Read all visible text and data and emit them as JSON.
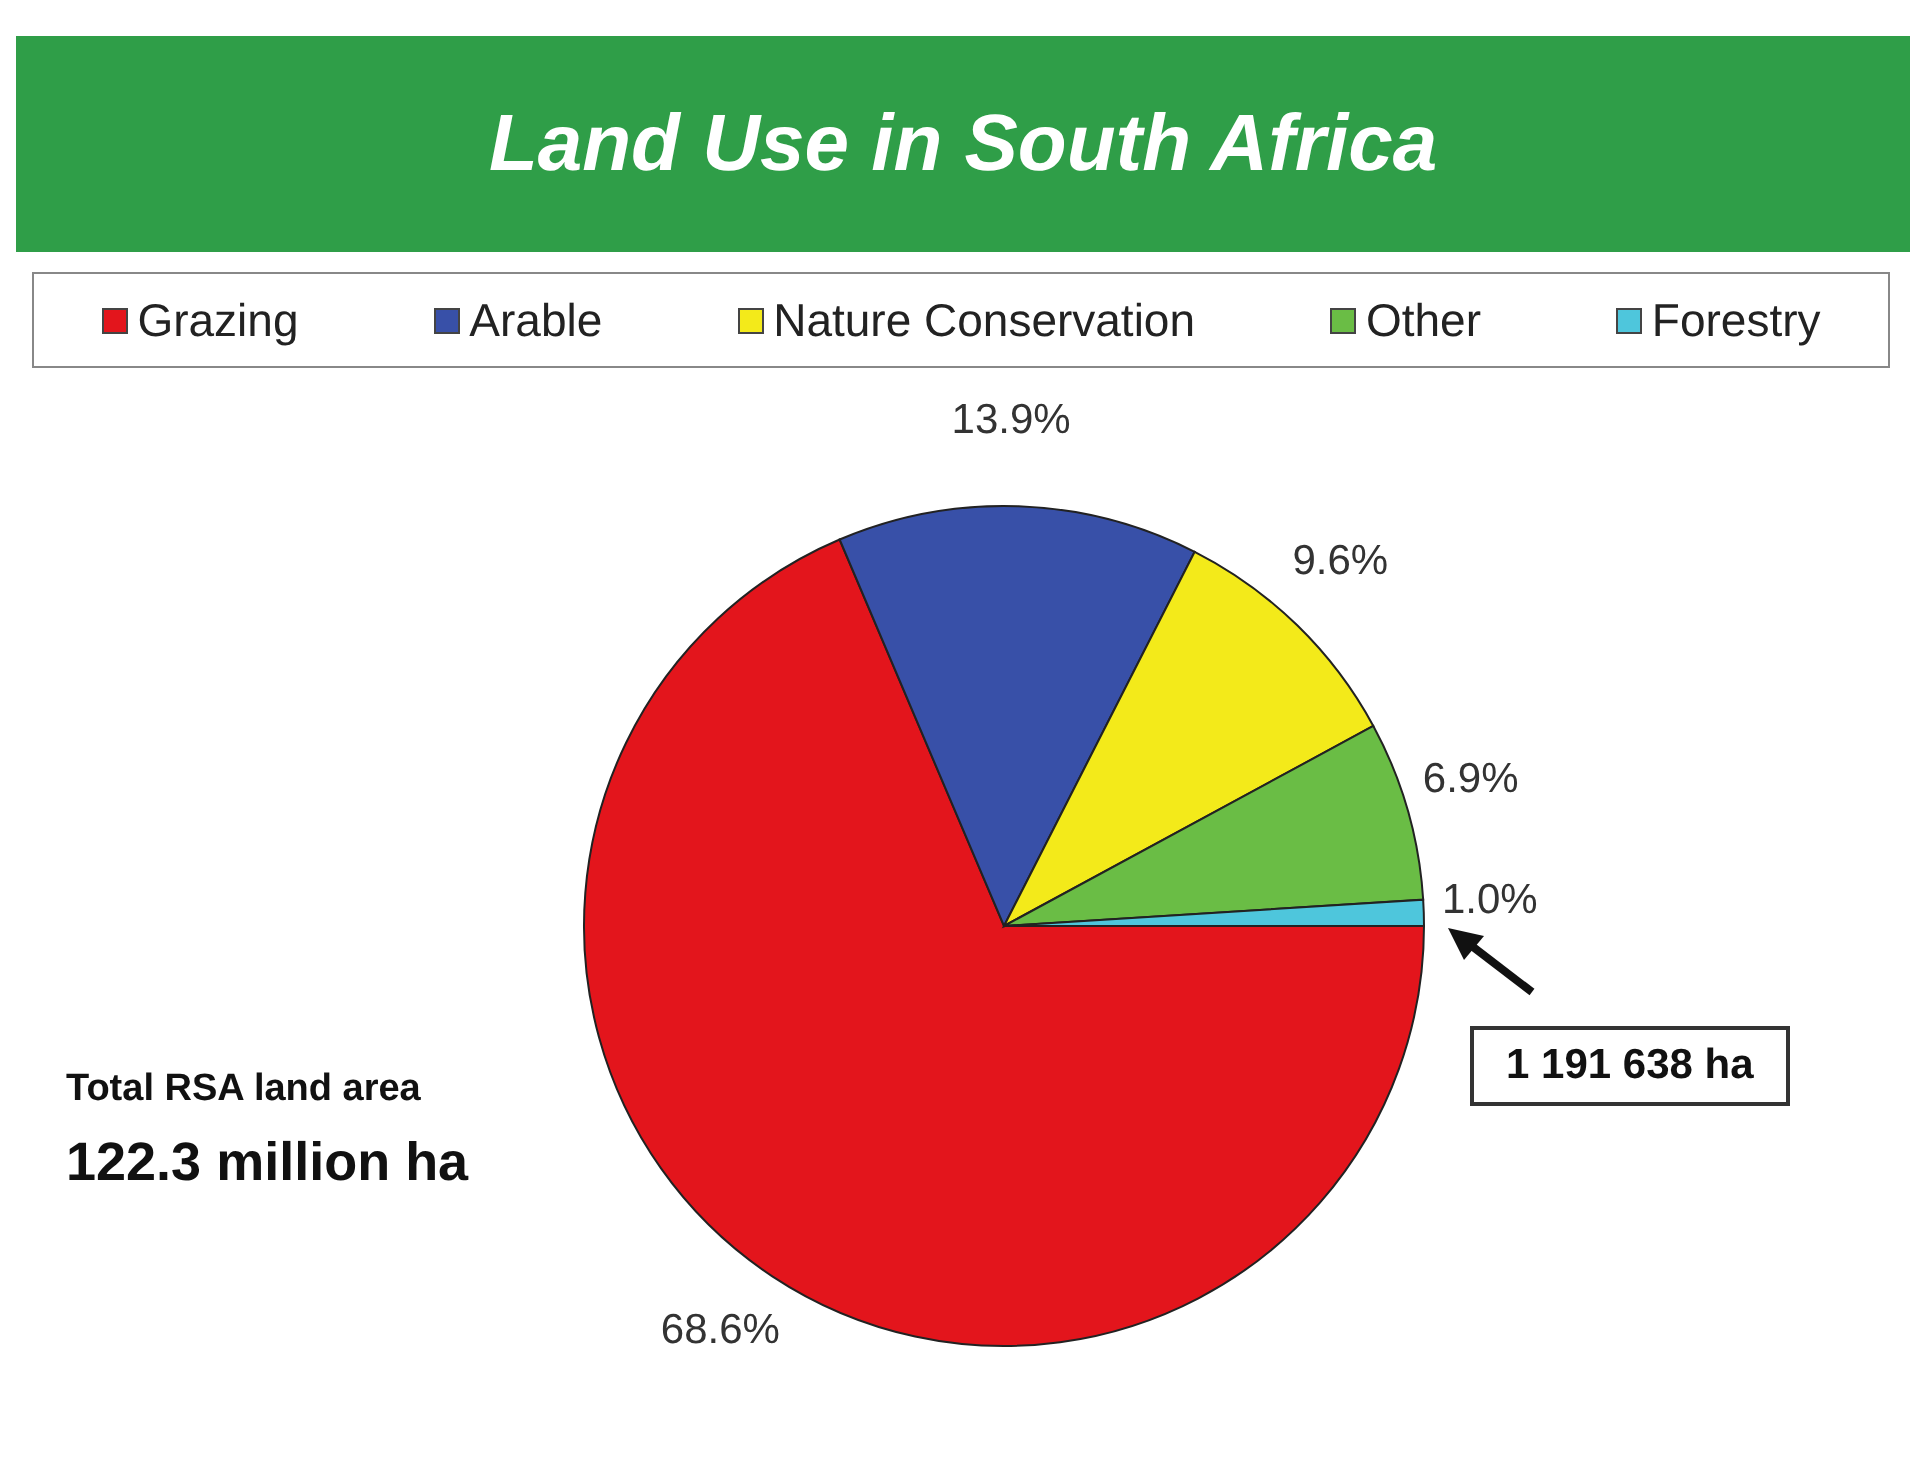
{
  "chart_data": {
    "type": "pie",
    "title": "Land Use in South Africa",
    "categories": [
      "Grazing",
      "Arable",
      "Nature Conservation",
      "Other",
      "Forestry"
    ],
    "values": [
      68.6,
      13.9,
      9.6,
      6.9,
      1.0
    ],
    "colors": [
      "#e3151c",
      "#3850a8",
      "#f3ea1a",
      "#6abd45",
      "#4ec6dc"
    ],
    "value_labels": [
      "68.6%",
      "13.9%",
      "9.6%",
      "6.9%",
      "1.0%"
    ],
    "legend": "top",
    "annotations": [
      "Total RSA land area",
      "122.3 million ha",
      "1 191 638 ha"
    ]
  }
}
